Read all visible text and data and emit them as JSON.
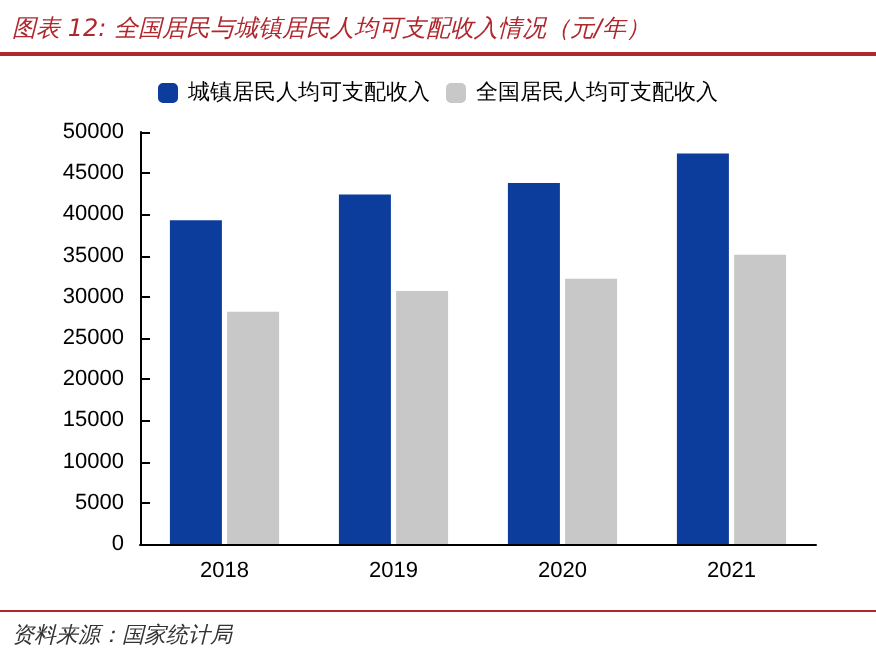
{
  "chart_data": {
    "type": "bar",
    "title": "图表 12: 全国居民与城镇居民人均可支配收入情况（元/年）",
    "categories": [
      "2018",
      "2019",
      "2020",
      "2021"
    ],
    "series": [
      {
        "name": "城镇居民人均可支配收入",
        "color": "#0c3c9c",
        "values": [
          39300,
          42400,
          43800,
          47400
        ]
      },
      {
        "name": "全国居民人均可支配收入",
        "color": "#c8c8c8",
        "values": [
          28200,
          30700,
          32200,
          35100
        ]
      }
    ],
    "ylim": [
      0,
      50000
    ],
    "yticks": [
      0,
      5000,
      10000,
      15000,
      20000,
      25000,
      30000,
      35000,
      40000,
      45000,
      50000
    ],
    "grid": false,
    "legend": "top",
    "annotations": [
      "资料来源：国家统计局"
    ]
  }
}
